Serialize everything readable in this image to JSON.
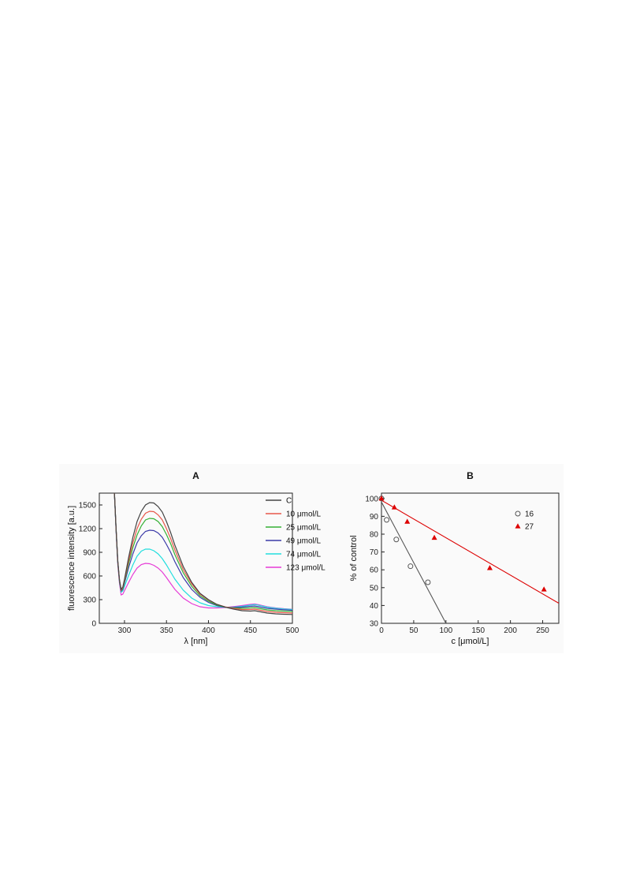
{
  "chart_data": [
    {
      "panel": "A",
      "type": "line",
      "title": "A",
      "xlabel": "λ [nm]",
      "ylabel": "fluorescence intensity [a.u.]",
      "xlim": [
        270,
        500
      ],
      "ylim": [
        0,
        1650
      ],
      "xticks": [
        300,
        350,
        400,
        450,
        500
      ],
      "yticks": [
        0,
        300,
        600,
        900,
        1200,
        1500
      ],
      "grid": false,
      "legend": "top-right",
      "x": [
        288,
        290,
        292,
        294,
        296,
        298,
        300,
        305,
        310,
        315,
        320,
        325,
        330,
        335,
        340,
        345,
        350,
        355,
        360,
        370,
        380,
        390,
        400,
        410,
        420,
        430,
        440,
        450,
        455,
        460,
        470,
        480,
        490,
        500
      ],
      "series": [
        {
          "name": "C",
          "color": "#444444",
          "values": [
            1650,
            1200,
            800,
            550,
            430,
            460,
            560,
            840,
            1090,
            1290,
            1420,
            1500,
            1530,
            1525,
            1480,
            1410,
            1290,
            1150,
            990,
            720,
            520,
            380,
            300,
            240,
            205,
            180,
            160,
            155,
            160,
            150,
            130,
            120,
            115,
            112
          ]
        },
        {
          "name": "10 μmol/L",
          "color": "#e8574a",
          "values": [
            1650,
            1195,
            790,
            545,
            420,
            450,
            545,
            800,
            1020,
            1200,
            1320,
            1395,
            1420,
            1415,
            1375,
            1310,
            1200,
            1075,
            930,
            680,
            500,
            370,
            295,
            240,
            208,
            190,
            175,
            175,
            180,
            170,
            150,
            140,
            135,
            130
          ]
        },
        {
          "name": "25 μmol/L",
          "color": "#35b035",
          "values": [
            1650,
            1190,
            785,
            540,
            415,
            440,
            530,
            760,
            960,
            1120,
            1235,
            1310,
            1330,
            1325,
            1290,
            1225,
            1125,
            1010,
            870,
            640,
            470,
            350,
            280,
            232,
            205,
            195,
            190,
            195,
            200,
            190,
            170,
            160,
            155,
            150
          ]
        },
        {
          "name": "49 μmol/L",
          "color": "#3b3aa8",
          "values": [
            1650,
            1185,
            780,
            535,
            410,
            430,
            510,
            710,
            880,
            1020,
            1110,
            1165,
            1180,
            1175,
            1145,
            1090,
            1000,
            900,
            780,
            580,
            430,
            330,
            265,
            225,
            205,
            200,
            205,
            215,
            220,
            210,
            190,
            180,
            172,
            165
          ]
        },
        {
          "name": "74 μmol/L",
          "color": "#22dede",
          "values": [
            1650,
            1180,
            770,
            525,
            395,
            410,
            470,
            610,
            740,
            850,
            915,
            940,
            940,
            920,
            880,
            820,
            740,
            650,
            560,
            420,
            320,
            260,
            225,
            210,
            203,
            205,
            215,
            230,
            238,
            228,
            205,
            192,
            182,
            175
          ]
        },
        {
          "name": "123 μmol/L",
          "color": "#e63bd6",
          "values": [
            1650,
            1170,
            750,
            505,
            360,
            370,
            415,
            520,
            620,
            700,
            745,
            760,
            755,
            735,
            700,
            650,
            580,
            505,
            430,
            320,
            250,
            210,
            195,
            195,
            200,
            212,
            225,
            240,
            245,
            235,
            210,
            195,
            185,
            178
          ]
        }
      ]
    },
    {
      "panel": "B",
      "type": "scatter",
      "title": "B",
      "xlabel": "c [μmol/L]",
      "ylabel": "% of control",
      "xlim": [
        0,
        275
      ],
      "ylim": [
        30,
        103
      ],
      "xticks": [
        0,
        50,
        100,
        150,
        200,
        250
      ],
      "yticks": [
        30,
        40,
        50,
        60,
        70,
        80,
        90,
        100
      ],
      "grid": false,
      "legend": "top-right",
      "series": [
        {
          "name": "16",
          "marker": "open-circle",
          "color": "#555555",
          "x": [
            0,
            8,
            23,
            45,
            72
          ],
          "y": [
            100,
            88,
            77,
            62,
            53
          ],
          "fit": {
            "slope": -0.68,
            "intercept": 98,
            "xrange": [
              0,
              100
            ]
          }
        },
        {
          "name": "27",
          "marker": "filled-triangle",
          "color": "#dd0000",
          "x": [
            0,
            20,
            40,
            82,
            168,
            252
          ],
          "y": [
            100,
            95,
            87,
            78,
            61,
            49
          ],
          "fit": {
            "slope": -0.21,
            "intercept": 99,
            "xrange": [
              0,
              275
            ]
          }
        }
      ]
    }
  ]
}
